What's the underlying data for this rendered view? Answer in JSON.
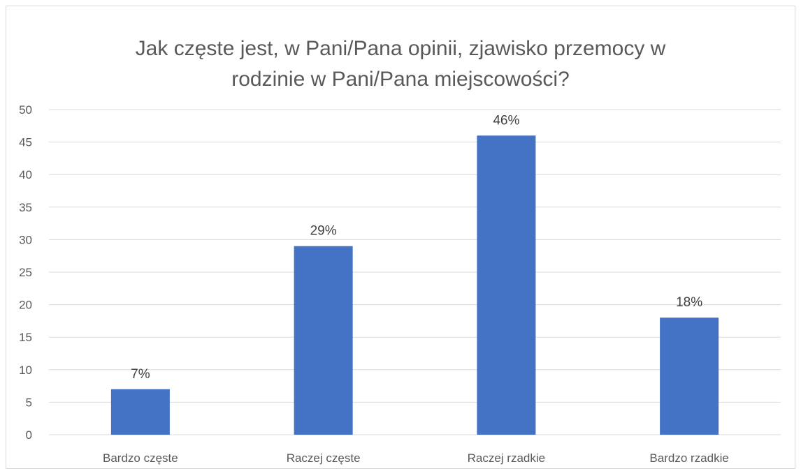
{
  "chart_data": {
    "type": "bar",
    "title_lines": [
      "Jak częste jest, w Pani/Pana opinii, zjawisko przemocy w",
      "rodzinie w Pani/Pana miejscowości?"
    ],
    "categories": [
      "Bardzo częste",
      "Raczej częste",
      "Raczej rzadkie",
      "Bardzo rzadkie"
    ],
    "values": [
      7,
      29,
      46,
      18
    ],
    "data_labels": [
      "7%",
      "29%",
      "46%",
      "18%"
    ],
    "ylim": [
      0,
      50
    ],
    "yticks": [
      0,
      5,
      10,
      15,
      20,
      25,
      30,
      35,
      40,
      45,
      50
    ],
    "grid": true,
    "legend": "none",
    "bar_color": "#4472c4",
    "grid_color": "#d9d9d9"
  }
}
